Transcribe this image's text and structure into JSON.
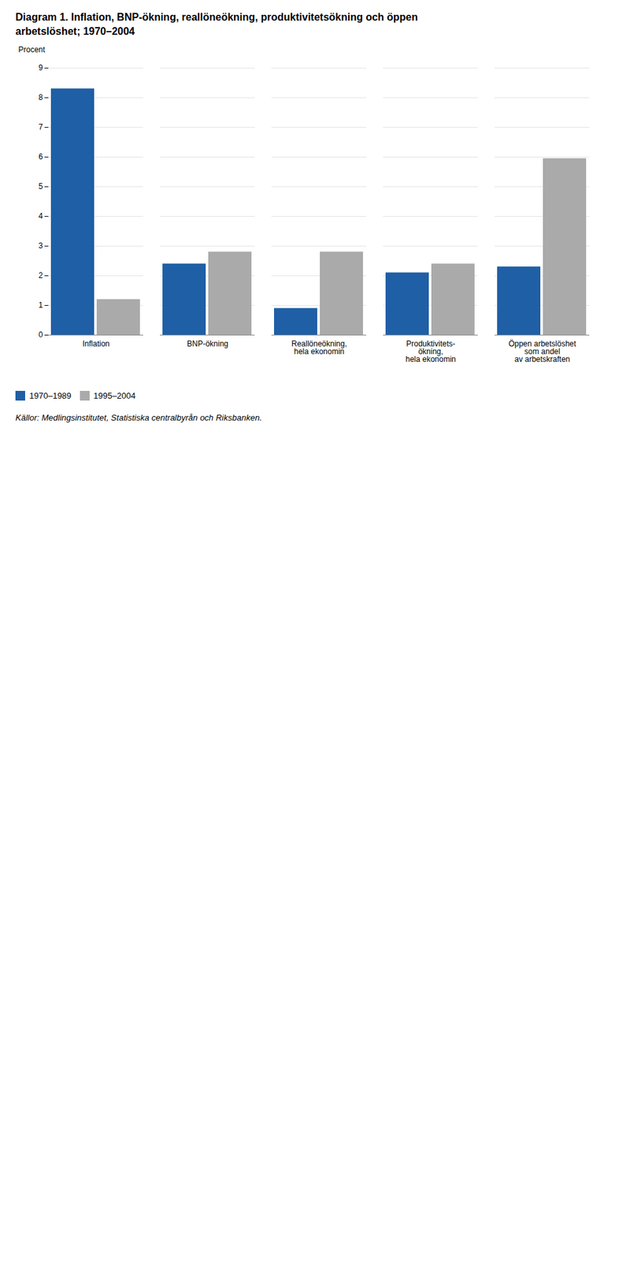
{
  "chart_data": {
    "type": "bar",
    "title": "Diagram 1. Inflation, BNP-ökning, reallöneökning, produktivitetsökning och öppen\narbetslöshet; 1970–2004",
    "ylabel": "Procent",
    "categories": [
      "Inflation",
      "BNP-ökning",
      "Reallöneökning,\nhela ekonomin",
      "Produktivitets-\nökning,\nhela ekonomin",
      "Öppen arbetslöshet\nsom andel\nav arbetskraften"
    ],
    "series": [
      {
        "name": "1970–1989",
        "color": "#1F5FA6",
        "values": [
          8.3,
          2.4,
          0.9,
          2.1,
          2.3
        ]
      },
      {
        "name": "1995–2004",
        "color": "#AAAAAA",
        "values": [
          1.2,
          2.8,
          2.8,
          2.4,
          5.95
        ]
      }
    ],
    "ylim": [
      0,
      9
    ],
    "yticks": [
      0,
      1,
      2,
      3,
      4,
      5,
      6,
      7,
      8,
      9
    ],
    "grid": true,
    "caption": "Källor: Medlingsinstitutet, Statistiska centralbyrån och Riksbanken."
  }
}
